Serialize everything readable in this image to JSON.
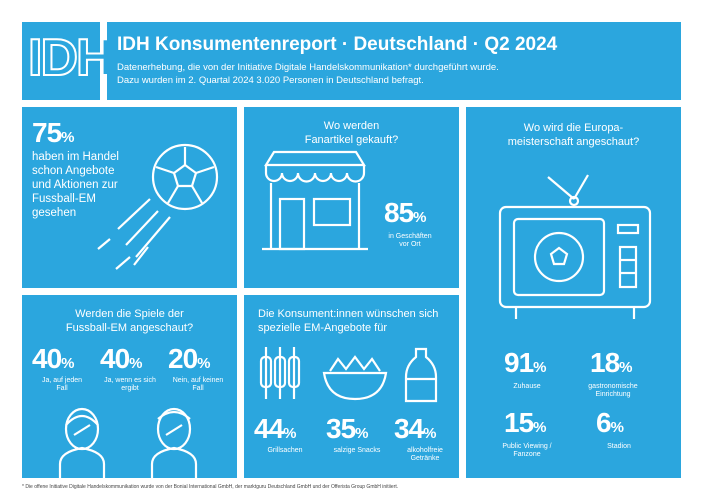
{
  "header": {
    "logo": "IDH",
    "title": "IDH Konsumentenreport · Deutschland · Q2 2024",
    "subtitle": [
      "Datenerhebung, die von der Initiative Digitale Handelskommunikation* durchgeführt wurde.",
      "Dazu wurden im 2. Quartal 2024 3.020 Personen in Deutschland befragt."
    ]
  },
  "panels": [
    {
      "stat": {
        "value": 75,
        "unit": "%"
      },
      "text": [
        "haben im Handel",
        "schon Angebote",
        "und Aktionen zur",
        "Fussball-EM",
        "gesehen"
      ]
    },
    {
      "title": [
        "Wo werden",
        "Fanartikel gekauft?"
      ],
      "stat": {
        "value": 85,
        "unit": "%",
        "label": "in Geschäften vor Ort"
      }
    },
    {
      "title": [
        "Wo wird die Europa-",
        "meisterschaft angeschaut?"
      ],
      "stats": [
        {
          "value": 91,
          "unit": "%",
          "label": "Zuhause"
        },
        {
          "value": 18,
          "unit": "%",
          "label": "gastronomische Einrichtung"
        },
        {
          "value": 15,
          "unit": "%",
          "label": "Public Viewing / Fanzone"
        },
        {
          "value": 6,
          "unit": "%",
          "label": "Stadion"
        }
      ]
    },
    {
      "title": [
        "Werden die Spiele der",
        "Fussball-EM angeschaut?"
      ],
      "stats": [
        {
          "value": 40,
          "unit": "%",
          "label": "Ja, auf jeden Fall"
        },
        {
          "value": 40,
          "unit": "%",
          "label": "Ja, wenn es sich ergibt"
        },
        {
          "value": 20,
          "unit": "%",
          "label": "Nein, auf keinen Fall"
        }
      ]
    },
    {
      "title": [
        "Die Konsument:innen wünschen sich",
        "spezielle EM-Angebote für"
      ],
      "stats": [
        {
          "value": 44,
          "unit": "%",
          "label": "Grillsachen"
        },
        {
          "value": 35,
          "unit": "%",
          "label": "salzige Snacks"
        },
        {
          "value": 34,
          "unit": "%",
          "label": "alkoholfreie Getränke"
        }
      ]
    }
  ],
  "footnote": "* Die offene Initiative Digitale Handelskommunikation wurde von der Bonial International GmbH, der markt­guru Deutschland GmbH und der Offerista Group GmbH initiiert."
}
